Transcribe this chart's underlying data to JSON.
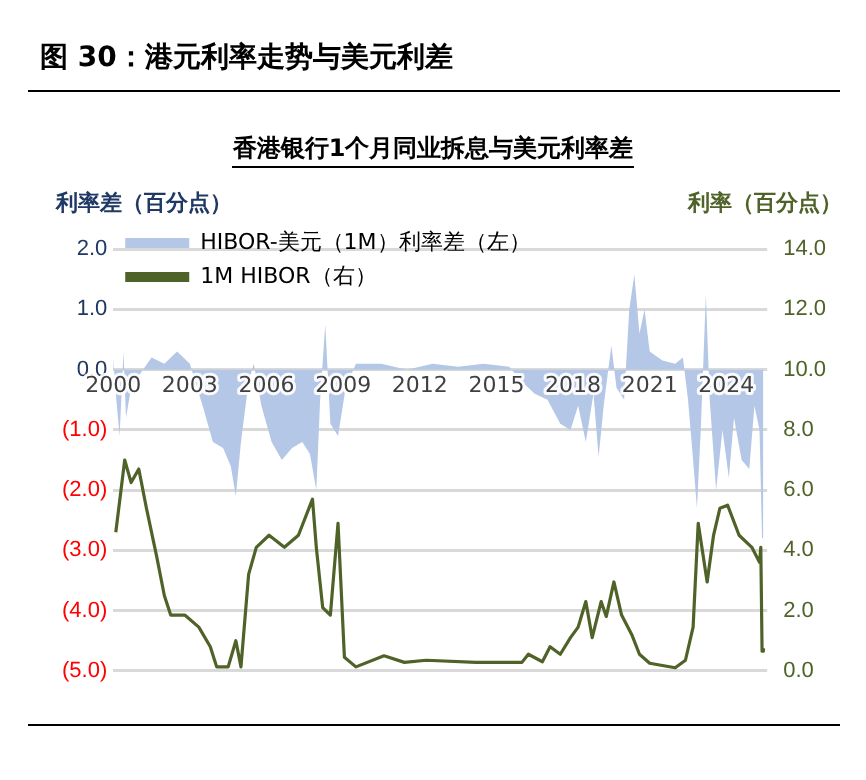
{
  "chart_data": {
    "type": "area",
    "title": "图 30：港元利率走势与美元利差",
    "subtitle": "香港银行1个月同业拆息与美元利率差",
    "ylabel": "利率差（百分点）",
    "y2label": "利率（百分点）",
    "xlim": [
      2000,
      2025.6
    ],
    "xticks": [
      2000,
      2003,
      2006,
      2009,
      2012,
      2015,
      2018,
      2021,
      2024
    ],
    "ylim": [
      -5,
      2
    ],
    "yticks": [
      {
        "value": -5,
        "label": "(5.0)"
      },
      {
        "value": -4,
        "label": "(4.0)"
      },
      {
        "value": -3,
        "label": "(3.0)"
      },
      {
        "value": -2,
        "label": "(2.0)"
      },
      {
        "value": -1,
        "label": "(1.0)"
      },
      {
        "value": 0,
        "label": "0.0"
      },
      {
        "value": 1,
        "label": "1.0"
      },
      {
        "value": 2,
        "label": "2.0"
      }
    ],
    "y2lim": [
      0,
      14
    ],
    "y2ticks": [
      {
        "value": 0,
        "label": "0.0"
      },
      {
        "value": 2,
        "label": "2.0"
      },
      {
        "value": 4,
        "label": "4.0"
      },
      {
        "value": 6,
        "label": "6.0"
      },
      {
        "value": 8,
        "label": "8.0"
      },
      {
        "value": 10,
        "label": "10.0"
      },
      {
        "value": 12,
        "label": "12.0"
      },
      {
        "value": 14,
        "label": "14.0"
      }
    ],
    "grid": "y",
    "legend": "top left",
    "series": [
      {
        "name": "HIBOR-美元（1M）利率差（左）",
        "type": "area",
        "color": "#b4c7e7",
        "x": [
          2000.0,
          2000.1,
          2000.25,
          2000.4,
          2000.5,
          2000.7,
          2001.0,
          2001.5,
          2002.0,
          2002.5,
          2003.0,
          2003.5,
          2003.9,
          2004.3,
          2004.6,
          2004.8,
          2005.0,
          2005.3,
          2005.5,
          2005.8,
          2006.2,
          2006.6,
          2007.0,
          2007.4,
          2007.7,
          2007.95,
          2008.1,
          2008.3,
          2008.5,
          2008.8,
          2009.1,
          2009.5,
          2010.5,
          2011.5,
          2012.5,
          2013.5,
          2014.5,
          2015.5,
          2016.0,
          2016.5,
          2017.0,
          2017.5,
          2017.9,
          2018.2,
          2018.5,
          2018.8,
          2019.0,
          2019.2,
          2019.5,
          2019.7,
          2020.0,
          2020.2,
          2020.4,
          2020.6,
          2020.8,
          2021.0,
          2021.5,
          2022.0,
          2022.3,
          2022.5,
          2022.7,
          2022.85,
          2023.0,
          2023.2,
          2023.35,
          2023.6,
          2023.85,
          2024.1,
          2024.3,
          2024.6,
          2024.9,
          2025.1,
          2025.3,
          2025.4,
          2025.45
        ],
        "values": [
          0.2,
          -0.4,
          -1.1,
          0.3,
          -0.8,
          -0.3,
          -0.1,
          0.2,
          0.1,
          0.3,
          0.1,
          -0.6,
          -1.2,
          -1.3,
          -1.6,
          -2.1,
          -1.2,
          -0.2,
          0.1,
          -0.6,
          -1.2,
          -1.5,
          -1.3,
          -1.2,
          -1.4,
          -2.0,
          -0.5,
          0.75,
          -0.9,
          -1.1,
          -0.3,
          0.1,
          0.1,
          0.0,
          0.1,
          0.05,
          0.1,
          0.05,
          -0.2,
          -0.4,
          -0.5,
          -0.9,
          -1.0,
          -0.6,
          -1.2,
          -0.4,
          -1.45,
          -0.6,
          0.4,
          -0.3,
          -0.5,
          1.0,
          1.58,
          0.6,
          1.0,
          0.3,
          0.15,
          0.1,
          0.2,
          -0.5,
          -1.5,
          -2.3,
          -1.0,
          1.25,
          -0.5,
          -2.0,
          -1.0,
          -1.8,
          -0.8,
          -1.5,
          -1.65,
          -0.6,
          -1.0,
          -2.8,
          -1.5
        ]
      },
      {
        "name": "1M HIBOR（右）",
        "type": "line",
        "axis": "y2",
        "color": "#4f6228",
        "x": [
          2000.1,
          2000.45,
          2000.7,
          2001.0,
          2001.3,
          2001.7,
          2002.0,
          2002.25,
          2002.8,
          2003.35,
          2003.8,
          2004.05,
          2004.5,
          2004.8,
          2005.0,
          2005.3,
          2005.6,
          2006.1,
          2006.7,
          2007.25,
          2007.8,
          2007.95,
          2008.2,
          2008.5,
          2008.8,
          2009.05,
          2009.5,
          2010.6,
          2011.4,
          2012.25,
          2014.2,
          2016.0,
          2016.25,
          2016.8,
          2017.1,
          2017.5,
          2017.9,
          2018.2,
          2018.5,
          2018.75,
          2019.1,
          2019.3,
          2019.6,
          2019.9,
          2020.3,
          2020.6,
          2021.0,
          2022.0,
          2022.4,
          2022.7,
          2022.9,
          2023.25,
          2023.5,
          2023.75,
          2024.05,
          2024.5,
          2025.0,
          2025.3,
          2025.35,
          2025.4,
          2025.45
        ],
        "values": [
          4.6,
          7.0,
          6.25,
          6.7,
          5.4,
          3.8,
          2.5,
          1.85,
          1.85,
          1.45,
          0.8,
          0.13,
          0.13,
          1.0,
          0.13,
          3.2,
          4.1,
          4.5,
          4.1,
          4.5,
          5.7,
          4.1,
          2.1,
          1.85,
          4.9,
          0.45,
          0.13,
          0.5,
          0.28,
          0.35,
          0.28,
          0.28,
          0.55,
          0.3,
          0.8,
          0.55,
          1.1,
          1.45,
          2.3,
          1.1,
          2.3,
          1.8,
          2.95,
          1.85,
          1.2,
          0.55,
          0.25,
          0.1,
          0.35,
          1.45,
          4.9,
          2.95,
          4.5,
          5.4,
          5.5,
          4.5,
          4.1,
          3.6,
          4.1,
          0.65,
          0.75
        ]
      }
    ]
  }
}
